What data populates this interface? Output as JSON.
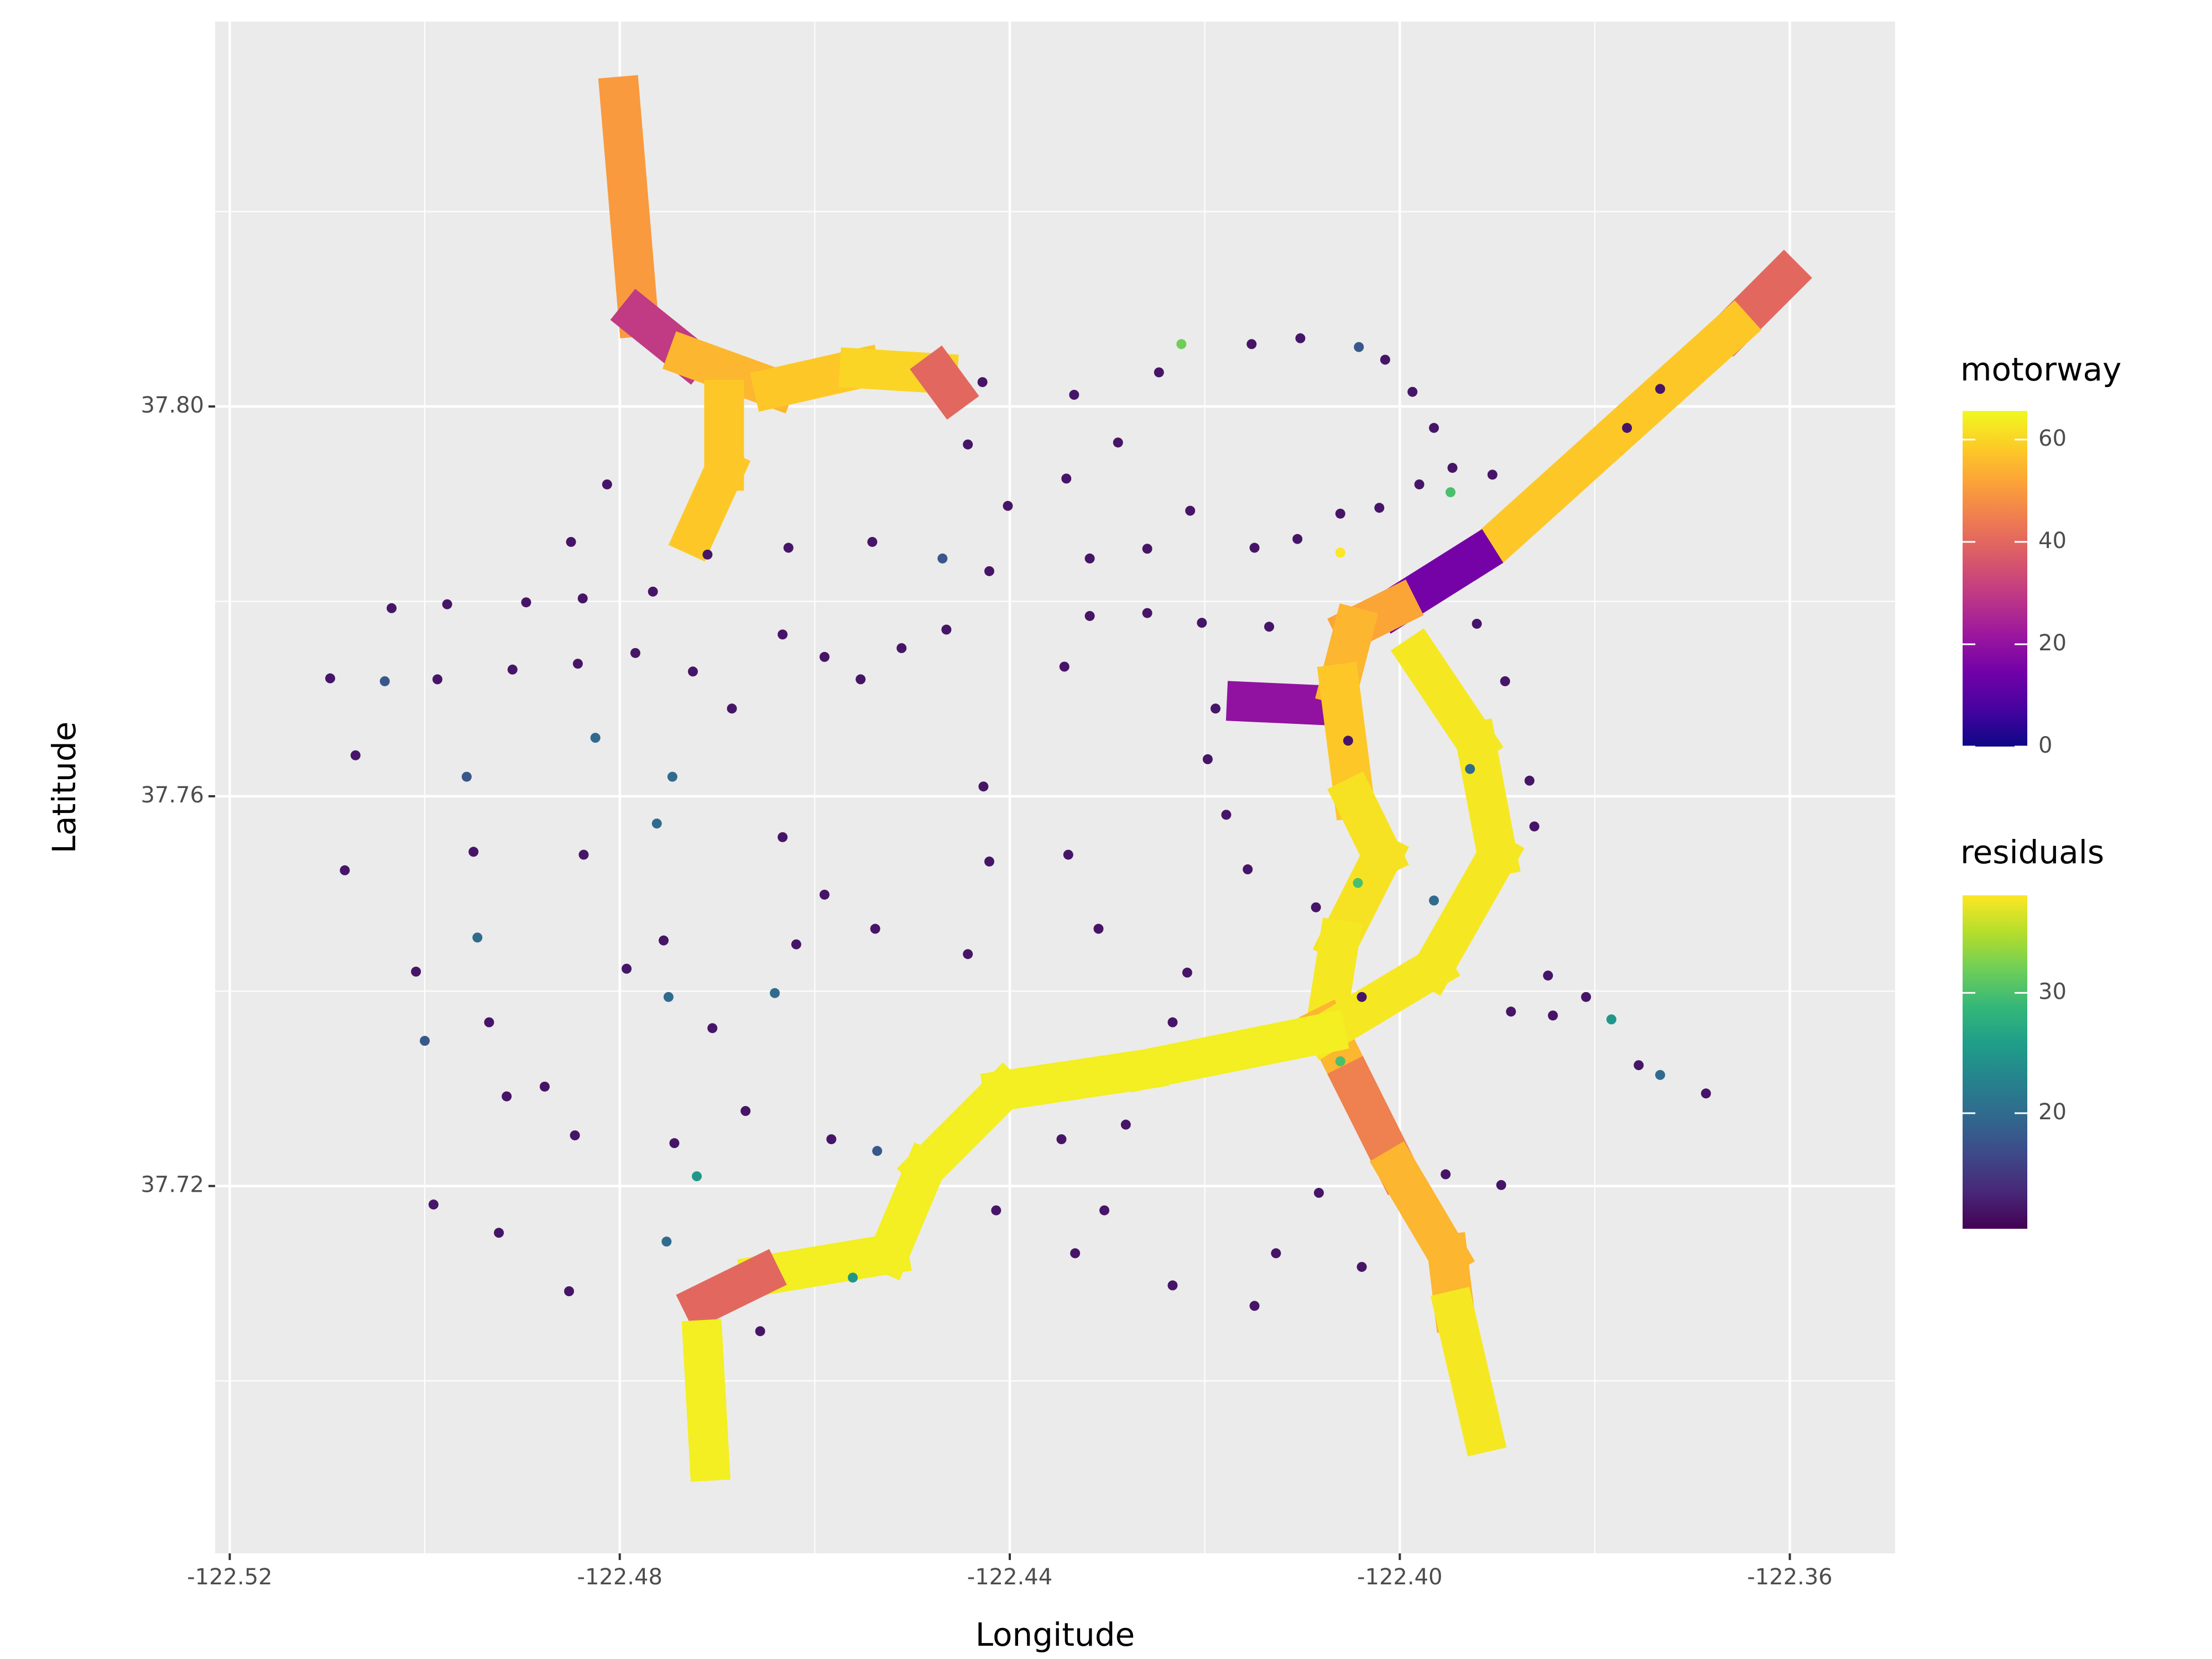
{
  "chart_data": {
    "type": "map-scatter",
    "xlabel": "Longitude",
    "ylabel": "Latitude",
    "xlim": [
      -122.5215,
      -122.3492
    ],
    "ylim": [
      37.6823,
      37.8395
    ],
    "xticks": [
      -122.52,
      -122.48,
      -122.44,
      {
        "value": -122.4,
        "label": "-122.40"
      },
      -122.36
    ],
    "yticks": [
      37.72,
      37.76,
      {
        "value": 37.8,
        "label": "37.80"
      }
    ],
    "grid": true,
    "legend_position": "right",
    "motorway_legend": {
      "title": "motorway",
      "range": [
        0,
        65.6
      ],
      "ticks": [
        0,
        20,
        40,
        60
      ],
      "colors": [
        "#0d0887",
        "#46039f",
        "#7201a8",
        "#9c179e",
        "#bd3786",
        "#d8576b",
        "#ed7953",
        "#fb9f3a",
        "#fdca26",
        "#f0f921"
      ]
    },
    "residuals_legend": {
      "title": "residuals",
      "range": [
        10.4,
        38.1
      ],
      "ticks": [
        20,
        30
      ],
      "colors": [
        "#440154",
        "#482878",
        "#3e4989",
        "#31688e",
        "#26828e",
        "#1f9e89",
        "#35b779",
        "#6ece58",
        "#b5de2b",
        "#fde725"
      ]
    },
    "motorways": [
      {
        "lon": [
          -122.48,
          -122.4781
        ],
        "lat": [
          37.8318,
          37.8092
        ],
        "motorway": 50
      },
      {
        "lon": [
          -122.4781,
          -122.473
        ],
        "lat": [
          37.8092,
          37.8051
        ],
        "motorway": 30
      },
      {
        "lon": [
          -122.473,
          -122.4642
        ],
        "lat": [
          37.8051,
          37.8019
        ],
        "motorway": 55
      },
      {
        "lon": [
          -122.4642,
          -122.4554
        ],
        "lat": [
          37.8019,
          37.8039
        ],
        "motorway": 58
      },
      {
        "lon": [
          -122.4554,
          -122.4474
        ],
        "lat": [
          37.8039,
          37.8034
        ],
        "motorway": 60
      },
      {
        "lon": [
          -122.4474,
          -122.446
        ],
        "lat": [
          37.8034,
          37.8015
        ],
        "motorway": 40
      },
      {
        "lon": [
          -122.4693,
          -122.4693
        ],
        "lat": [
          37.8007,
          37.7934
        ],
        "motorway": 58
      },
      {
        "lon": [
          -122.4693,
          -122.4723
        ],
        "lat": [
          37.7934,
          37.7868
        ],
        "motorway": 58
      },
      {
        "lon": [
          -122.3606,
          -122.3658
        ],
        "lat": [
          37.8132,
          37.808
        ],
        "motorway": 40
      },
      {
        "lon": [
          -122.3658,
          -122.3893
        ],
        "lat": [
          37.808,
          37.7868
        ],
        "motorway": 58
      },
      {
        "lon": [
          -122.3922,
          -122.4003
        ],
        "lat": [
          37.7846,
          37.7795
        ],
        "motorway": 15
      },
      {
        "lon": [
          -122.4003,
          -122.4047
        ],
        "lat": [
          37.7795,
          37.7773
        ],
        "motorway": 52
      },
      {
        "lon": [
          -122.4157,
          -122.4069
        ],
        "lat": [
          37.7697,
          37.7693
        ],
        "motorway": 20
      },
      {
        "lon": [
          -122.4047,
          -122.4062
        ],
        "lat": [
          37.7773,
          37.7715
        ],
        "motorway": 55
      },
      {
        "lon": [
          -122.4062,
          -122.4047
        ],
        "lat": [
          37.7715,
          37.7598
        ],
        "motorway": 58
      },
      {
        "lon": [
          -122.4047,
          -122.4018
        ],
        "lat": [
          37.7598,
          37.7539
        ],
        "motorway": 62
      },
      {
        "lon": [
          -122.4018,
          -122.4062
        ],
        "lat": [
          37.7539,
          37.7452
        ],
        "motorway": 62
      },
      {
        "lon": [
          -122.4062,
          -122.4076
        ],
        "lat": [
          37.7452,
          37.7364
        ],
        "motorway": 63
      },
      {
        "lon": [
          -122.4076,
          -122.4047
        ],
        "lat": [
          37.7364,
          37.7306
        ],
        "motorway": 55
      },
      {
        "lon": [
          -122.4047,
          -122.4003
        ],
        "lat": [
          37.7306,
          37.7218
        ],
        "motorway": 45
      },
      {
        "lon": [
          -122.4003,
          -122.3951
        ],
        "lat": [
          37.7218,
          37.713
        ],
        "motorway": 55
      },
      {
        "lon": [
          -122.3951,
          -122.3944
        ],
        "lat": [
          37.713,
          37.7072
        ],
        "motorway": 55
      },
      {
        "lon": [
          -122.3944,
          -122.3915
        ],
        "lat": [
          37.7072,
          37.6947
        ],
        "motorway": 63
      },
      {
        "lon": [
          -122.3981,
          -122.3922
        ],
        "lat": [
          37.7744,
          37.7656
        ],
        "motorway": 63
      },
      {
        "lon": [
          -122.3922,
          -122.39
        ],
        "lat": [
          37.7656,
          37.7539
        ],
        "motorway": 63
      },
      {
        "lon": [
          -122.39,
          -122.3966
        ],
        "lat": [
          37.7539,
          37.7423
        ],
        "motorway": 63
      },
      {
        "lon": [
          -122.3966,
          -122.4076
        ],
        "lat": [
          37.7423,
          37.7357
        ],
        "motorway": 63
      },
      {
        "lon": [
          -122.4076,
          -122.426
        ],
        "lat": [
          37.7357,
          37.732
        ],
        "motorway": 64
      },
      {
        "lon": [
          -122.426,
          -122.4407
        ],
        "lat": [
          37.732,
          37.7298
        ],
        "motorway": 64
      },
      {
        "lon": [
          -122.4407,
          -122.4487
        ],
        "lat": [
          37.7298,
          37.7218
        ],
        "motorway": 64
      },
      {
        "lon": [
          -122.4487,
          -122.4524
        ],
        "lat": [
          37.7218,
          37.713
        ],
        "motorway": 64
      },
      {
        "lon": [
          -122.4524,
          -122.4656
        ],
        "lat": [
          37.713,
          37.7108
        ],
        "motorway": 64
      },
      {
        "lon": [
          -122.4656,
          -122.4715
        ],
        "lat": [
          37.7108,
          37.7079
        ],
        "motorway": 40
      },
      {
        "lon": [
          -122.4715,
          -122.4708
        ],
        "lat": [
          37.7042,
          37.6918
        ],
        "motorway": 64
      }
    ],
    "points": {
      "lon": [
        -122.5097,
        -122.5071,
        -122.5082,
        -122.5034,
        -122.5041,
        -122.4977,
        -122.4987,
        -122.491,
        -122.4896,
        -122.4838,
        -122.4843,
        -122.4813,
        -122.485,
        -122.4957,
        -122.495,
        -122.4946,
        -122.4934,
        -122.4916,
        -122.4877,
        -122.4846,
        -122.4852,
        -122.4924,
        -122.4991,
        -122.5,
        -122.5009,
        -122.4784,
        -122.4725,
        -122.4685,
        -122.4633,
        -122.459,
        -122.4553,
        -122.4511,
        -122.4465,
        -122.4421,
        -122.4318,
        -122.4259,
        -122.4215,
        -122.4149,
        -122.4105,
        -122.4061,
        -122.4021,
        -122.398,
        -122.3946,
        -122.3905,
        -122.3965,
        -122.3987,
        -122.4015,
        -122.4042,
        -122.4102,
        -122.4152,
        -122.4224,
        -122.4247,
        -122.4289,
        -122.4334,
        -122.4428,
        -122.4443,
        -122.4402,
        -122.4342,
        -122.4318,
        -122.4344,
        -122.4259,
        -122.4203,
        -122.4134,
        -122.4189,
        -122.4197,
        -122.4178,
        -122.4156,
        -122.4086,
        -122.4218,
        -122.4233,
        -122.4281,
        -122.4303,
        -122.4333,
        -122.4233,
        -122.4149,
        -122.4127,
        -122.4083,
        -122.4039,
        -122.3953,
        -122.3896,
        -122.3886,
        -122.3843,
        -122.3809,
        -122.3783,
        -122.3755,
        -122.3733,
        -122.3686,
        -122.3848,
        -122.3862,
        -122.3892,
        -122.3921,
        -122.3948,
        -122.4061,
        -122.4043,
        -122.4061,
        -122.3965,
        -122.4755,
        -122.475,
        -122.4744,
        -122.4721,
        -122.4752,
        -122.4656,
        -122.4561,
        -122.4536,
        -122.4414,
        -122.4347,
        -122.4443,
        -122.4538,
        -122.459,
        -122.4633,
        -122.4619,
        -122.4641,
        -122.4705,
        -122.4671,
        -122.4583,
        -122.4427,
        -122.4421,
        -122.434,
        -122.4309,
        -122.4746,
        -122.4762,
        -122.4825,
        -122.4837,
        -122.4793,
        -122.4469,
        -122.4541,
        -122.4627,
        -122.471,
        -122.4766,
        -122.3767,
        -122.3733,
        -122.3867,
        -122.3928,
        -122.4039,
        -122.4053
      ],
      "lat": [
        37.7721,
        37.7642,
        37.7524,
        37.7793,
        37.7718,
        37.7797,
        37.772,
        37.773,
        37.7799,
        37.7803,
        37.7736,
        37.792,
        37.7861,
        37.762,
        37.7543,
        37.7455,
        37.7368,
        37.7292,
        37.7302,
        37.7252,
        37.7092,
        37.7152,
        37.7181,
        37.7349,
        37.742,
        37.7747,
        37.7728,
        37.769,
        37.7766,
        37.7743,
        37.772,
        37.7752,
        37.7771,
        37.7831,
        37.7844,
        37.7854,
        37.7893,
        37.7855,
        37.7864,
        37.789,
        37.7896,
        37.792,
        37.7937,
        37.793,
        37.7978,
        37.8015,
        37.8048,
        37.8061,
        37.807,
        37.8064,
        37.8064,
        37.8035,
        37.7963,
        37.8012,
        37.8025,
        37.7961,
        37.7898,
        37.7926,
        37.7785,
        37.7733,
        37.7788,
        37.7778,
        37.7774,
        37.769,
        37.7638,
        37.7581,
        37.7525,
        37.7486,
        37.7419,
        37.7368,
        37.7263,
        37.7175,
        37.7131,
        37.7098,
        37.7077,
        37.7131,
        37.7193,
        37.7117,
        37.7212,
        37.7201,
        37.7379,
        37.7375,
        37.7394,
        37.7371,
        37.7324,
        37.7314,
        37.7295,
        37.7416,
        37.7569,
        37.7718,
        37.7777,
        37.7912,
        37.785,
        37.7511,
        37.7328,
        37.7493,
        37.7452,
        37.7394,
        37.7244,
        37.721,
        37.7143,
        37.7051,
        37.7106,
        37.7236,
        37.7175,
        37.7248,
        37.7438,
        37.7464,
        37.7499,
        37.7558,
        37.7448,
        37.7398,
        37.7362,
        37.7277,
        37.7248,
        37.761,
        37.7533,
        37.754,
        37.7464,
        37.762,
        37.7572,
        37.766,
        37.754,
        37.7423,
        37.7844,
        37.7861,
        37.7855,
        37.7848,
        37.781,
        37.7978,
        37.8018,
        37.7616,
        37.7628,
        37.7394,
        37.7657
      ],
      "residuals": [
        12,
        12,
        12,
        12,
        18,
        12,
        12,
        12,
        12,
        12,
        12,
        12,
        12,
        18,
        12,
        20,
        12,
        12,
        12,
        12,
        12,
        12,
        12,
        18,
        12,
        12,
        12,
        12,
        12,
        12,
        12,
        12,
        12,
        12,
        12,
        12,
        12,
        12,
        12,
        12,
        12,
        12,
        12,
        12,
        12,
        12,
        12,
        18,
        12,
        12,
        32,
        12,
        12,
        12,
        12,
        12,
        12,
        12,
        12,
        12,
        12,
        12,
        12,
        12,
        12,
        12,
        12,
        12,
        12,
        12,
        12,
        12,
        12,
        12,
        12,
        12,
        12,
        12,
        12,
        12,
        12,
        12,
        12,
        25,
        12,
        20,
        12,
        12,
        12,
        12,
        12,
        30,
        38,
        30,
        30,
        20,
        12,
        20,
        12,
        25,
        20,
        12,
        25,
        18,
        12,
        12,
        12,
        12,
        12,
        12,
        12,
        20,
        12,
        12,
        12,
        12,
        12,
        12,
        12,
        20,
        20,
        20,
        12,
        12,
        18,
        12,
        12,
        12,
        12,
        12,
        12,
        12,
        20,
        12,
        12
      ]
    }
  }
}
